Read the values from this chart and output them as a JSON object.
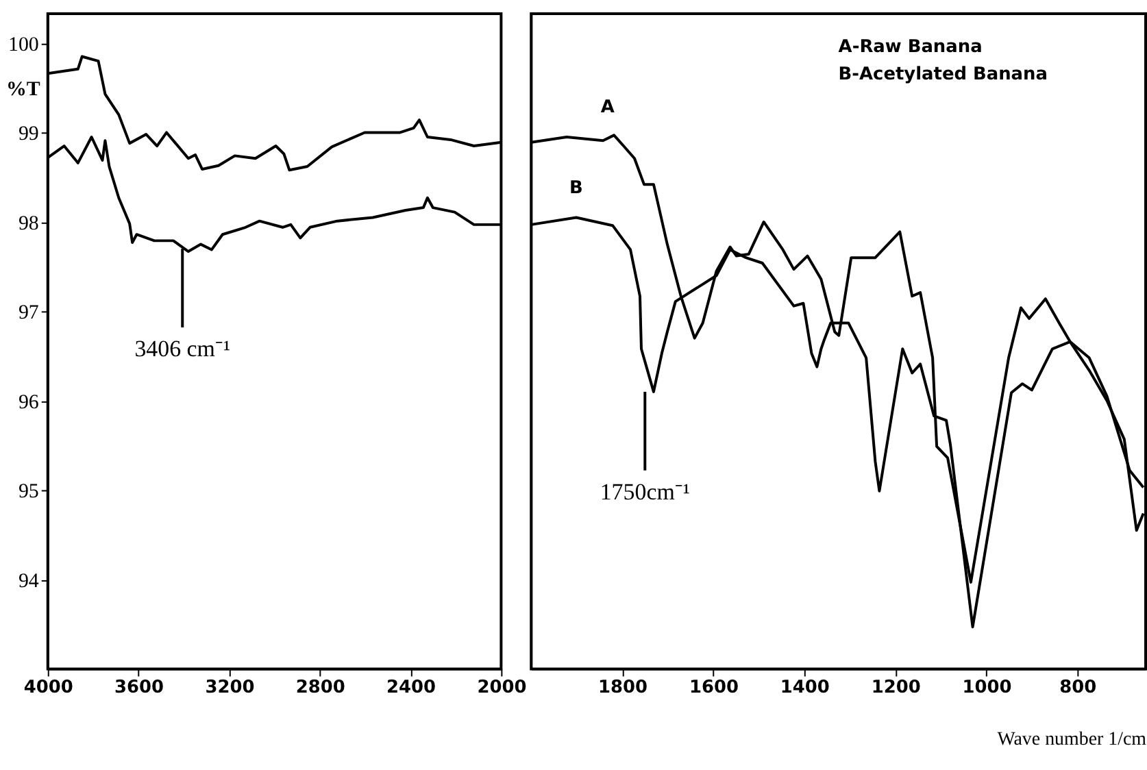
{
  "chart_data": [
    {
      "type": "line",
      "ylabel": "%T",
      "xlim": [
        4000,
        2000
      ],
      "xticks": [
        4000,
        3600,
        3200,
        2800,
        2400,
        2000
      ],
      "ylim": [
        93,
        100.33
      ],
      "yticks": [
        94,
        95,
        96,
        97,
        98,
        99,
        100
      ],
      "grid": false,
      "marker": "none",
      "line_style": "solid",
      "annotations": [
        {
          "text": "3406 cm⁻¹",
          "x": 3406,
          "y": 97.7
        }
      ],
      "series": [
        {
          "color": "#000000",
          "x": [
            4000,
            3867,
            3849,
            3777,
            3747,
            3687,
            3639,
            3566,
            3518,
            3476,
            3380,
            3349,
            3319,
            3247,
            3175,
            3084,
            2994,
            2958,
            2934,
            2855,
            2747,
            2602,
            2446,
            2386,
            2361,
            2325,
            2223,
            2120,
            2000
          ],
          "values": [
            99.66,
            99.71,
            99.85,
            99.8,
            99.43,
            99.2,
            98.88,
            98.98,
            98.85,
            99.0,
            98.71,
            98.75,
            98.59,
            98.63,
            98.74,
            98.71,
            98.85,
            98.76,
            98.58,
            98.62,
            98.84,
            99.0,
            99.0,
            99.05,
            99.14,
            98.95,
            98.92,
            98.85,
            98.89
          ]
        },
        {
          "color": "#000000",
          "x": [
            4000,
            3928,
            3867,
            3807,
            3759,
            3747,
            3729,
            3687,
            3639,
            3627,
            3608,
            3530,
            3446,
            3380,
            3325,
            3277,
            3229,
            3127,
            3066,
            2964,
            2928,
            2886,
            2843,
            2723,
            2566,
            2422,
            2343,
            2325,
            2301,
            2205,
            2120,
            2000
          ],
          "values": [
            98.72,
            98.85,
            98.66,
            98.95,
            98.69,
            98.91,
            98.62,
            98.27,
            97.98,
            97.77,
            97.86,
            97.79,
            97.79,
            97.67,
            97.75,
            97.69,
            97.86,
            97.94,
            98.01,
            97.94,
            97.97,
            97.82,
            97.94,
            98.01,
            98.05,
            98.13,
            98.16,
            98.27,
            98.16,
            98.11,
            97.97,
            97.97
          ]
        }
      ]
    },
    {
      "type": "line",
      "xlabel": "Wave number 1/cm",
      "xlim": [
        2000,
        650
      ],
      "xticks": [
        1800,
        1600,
        1400,
        1200,
        1000,
        800
      ],
      "ylim": [
        93,
        100.33
      ],
      "grid": false,
      "marker": "none",
      "line_style": "solid",
      "tick_labels": "x",
      "annotations": [
        "A-Raw Banana",
        "B-Acetylated Banana",
        {
          "text": "1750cm⁻¹",
          "x": 1750,
          "y": 96.1
        }
      ],
      "series": [
        {
          "name": "A",
          "color": "#000000",
          "x": [
            2000,
            1922,
            1842,
            1818,
            1797,
            1773,
            1752,
            1731,
            1701,
            1671,
            1641,
            1623,
            1593,
            1563,
            1549,
            1522,
            1489,
            1447,
            1423,
            1393,
            1363,
            1333,
            1324,
            1297,
            1244,
            1190,
            1163,
            1145,
            1118,
            1109,
            1085,
            1034,
            951,
            924,
            906,
            870,
            840,
            816,
            774,
            735,
            685,
            655
          ],
          "values": [
            98.89,
            98.95,
            98.91,
            98.97,
            98.85,
            98.71,
            98.42,
            98.42,
            97.75,
            97.17,
            96.7,
            96.87,
            97.45,
            97.72,
            97.62,
            97.64,
            98.0,
            97.69,
            97.47,
            97.62,
            97.36,
            96.77,
            96.73,
            97.6,
            97.6,
            97.89,
            97.17,
            97.21,
            96.48,
            95.49,
            95.36,
            93.97,
            96.48,
            97.04,
            96.92,
            97.14,
            96.87,
            96.66,
            96.48,
            96.05,
            95.22,
            95.03
          ]
        },
        {
          "name": "B",
          "color": "#000000",
          "x": [
            2000,
            1901,
            1821,
            1782,
            1761,
            1758,
            1731,
            1713,
            1701,
            1683,
            1593,
            1563,
            1528,
            1492,
            1423,
            1402,
            1384,
            1372,
            1363,
            1357,
            1342,
            1303,
            1264,
            1244,
            1235,
            1184,
            1163,
            1145,
            1115,
            1088,
            1079,
            1030,
            945,
            921,
            900,
            855,
            816,
            774,
            735,
            697,
            670,
            655
          ],
          "values": [
            97.97,
            98.05,
            97.96,
            97.69,
            97.17,
            96.58,
            96.1,
            96.53,
            96.77,
            97.11,
            97.4,
            97.69,
            97.6,
            97.54,
            97.06,
            97.09,
            96.53,
            96.38,
            96.58,
            96.67,
            96.87,
            96.87,
            96.48,
            95.32,
            94.99,
            96.58,
            96.31,
            96.41,
            95.83,
            95.78,
            95.51,
            93.47,
            96.09,
            96.19,
            96.12,
            96.58,
            96.66,
            96.34,
            96.0,
            95.57,
            94.55,
            94.74
          ]
        }
      ]
    }
  ]
}
